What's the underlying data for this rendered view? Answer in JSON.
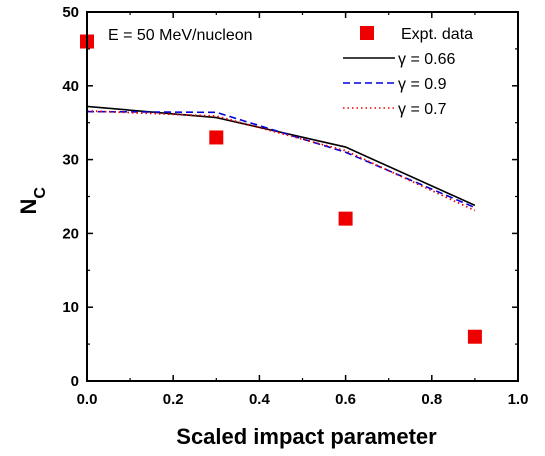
{
  "chart_data": {
    "type": "line",
    "annotation": "E = 50 MeV/nucleon",
    "xlabel": "Scaled impact parameter",
    "ylabel_main": "N",
    "ylabel_sub": "C",
    "xlim": [
      0.0,
      1.0
    ],
    "ylim": [
      0,
      50
    ],
    "x_ticks": [
      "0.0",
      "0.2",
      "0.4",
      "0.6",
      "0.8",
      "1.0"
    ],
    "y_ticks": [
      "0",
      "10",
      "20",
      "30",
      "40",
      "50"
    ],
    "grid": false,
    "legend_position": "top-right",
    "series": [
      {
        "name": "Expt. data",
        "kind": "scatter",
        "marker": "square",
        "color": "#ee0000",
        "x": [
          0.0,
          0.3,
          0.6,
          0.9
        ],
        "y": [
          46,
          33,
          22,
          6
        ]
      },
      {
        "name": "γ = 0.66",
        "kind": "line",
        "style": "solid",
        "color": "#000000",
        "x": [
          0.0,
          0.3,
          0.6,
          0.9
        ],
        "y": [
          37.2,
          35.7,
          31.7,
          23.8
        ]
      },
      {
        "name": "γ = 0.9",
        "kind": "line",
        "style": "dashed",
        "color": "#0000dd",
        "x": [
          0.0,
          0.3,
          0.6,
          0.9
        ],
        "y": [
          36.5,
          36.4,
          31.0,
          23.5
        ]
      },
      {
        "name": "γ = 0.7",
        "kind": "line",
        "style": "dotted",
        "color": "#ee0000",
        "x": [
          0.0,
          0.3,
          0.6,
          0.9
        ],
        "y": [
          36.6,
          35.9,
          31.2,
          23.1
        ]
      }
    ]
  }
}
